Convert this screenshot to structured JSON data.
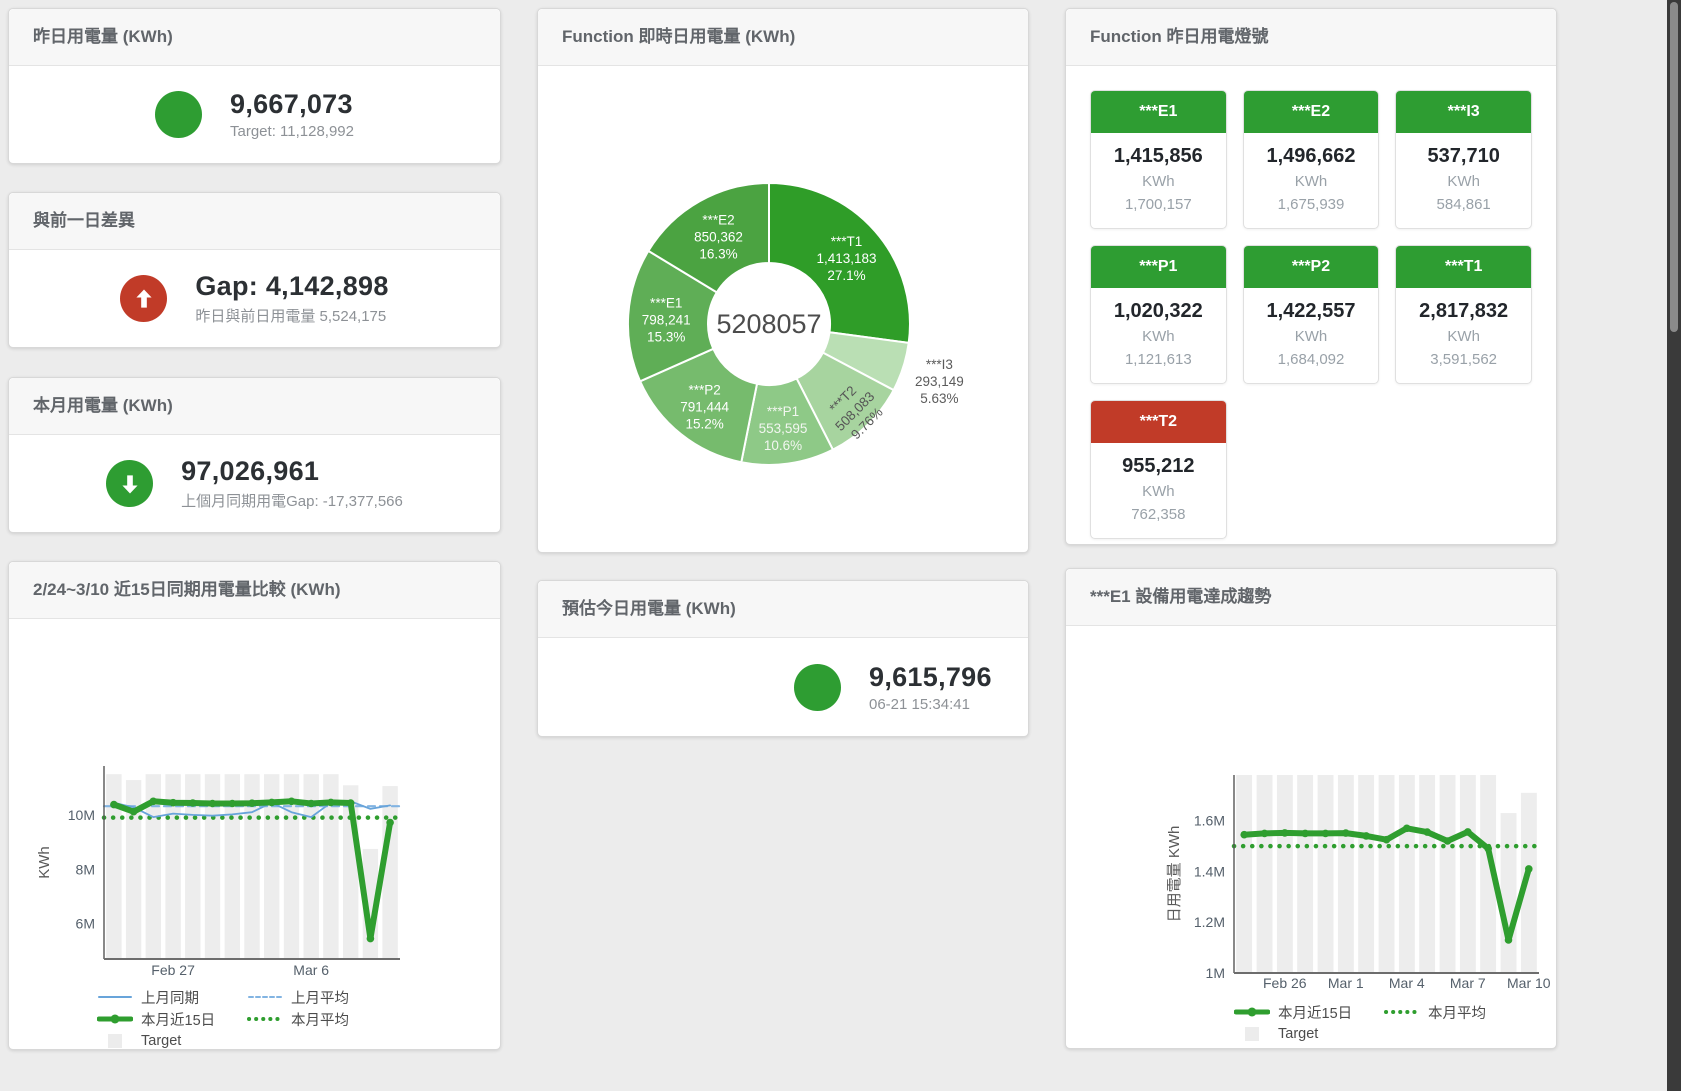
{
  "colors": {
    "green": "#2e9d32",
    "red": "#c13b28",
    "bar_gray": "#ededed",
    "blue_line": "#68a4da",
    "blue_dash": "#82b4e2",
    "green_line": "#2f9e2f"
  },
  "cards": {
    "yesterday": {
      "title": "昨日用電量 (KWh)",
      "value": "9,667,073",
      "subtitle": "Target: 11,128,992"
    },
    "gap": {
      "title": "與前一日差異",
      "value": "Gap: 4,142,898",
      "subtitle": "昨日與前日用電量 5,524,175"
    },
    "month": {
      "title": "本月用電量 (KWh)",
      "value": "97,026,961",
      "subtitle": "上個月同期用電Gap: -17,377,566"
    },
    "realtime": {
      "title": "Function 即時日用電量 (KWh)"
    },
    "lights": {
      "title": "Function 昨日用電燈號"
    },
    "comparison": {
      "title": "2/24~3/10 近15日同期用電量比較 (KWh)"
    },
    "estimate": {
      "title": "預估今日用電量 (KWh)",
      "value": "9,615,796",
      "subtitle": "06-21 15:34:41"
    },
    "trend": {
      "title": "***E1 設備用電達成趨勢"
    }
  },
  "lights_tiles": [
    {
      "key": "e1",
      "label": "***E1",
      "value": "1,415,856",
      "unit": "KWh",
      "target": "1,700,157",
      "status": "green"
    },
    {
      "key": "e2",
      "label": "***E2",
      "value": "1,496,662",
      "unit": "KWh",
      "target": "1,675,939",
      "status": "green"
    },
    {
      "key": "i3",
      "label": "***I3",
      "value": "537,710",
      "unit": "KWh",
      "target": "584,861",
      "status": "green"
    },
    {
      "key": "p1",
      "label": "***P1",
      "value": "1,020,322",
      "unit": "KWh",
      "target": "1,121,613",
      "status": "green"
    },
    {
      "key": "p2",
      "label": "***P2",
      "value": "1,422,557",
      "unit": "KWh",
      "target": "1,684,092",
      "status": "green"
    },
    {
      "key": "t1",
      "label": "***T1",
      "value": "2,817,832",
      "unit": "KWh",
      "target": "3,591,562",
      "status": "green"
    },
    {
      "key": "t2",
      "label": "***T2",
      "value": "955,212",
      "unit": "KWh",
      "target": "762,358",
      "status": "red"
    }
  ],
  "chart_data": [
    {
      "type": "pie",
      "title": "Function 即時日用電量 (KWh)",
      "center_total": "5208057",
      "slices": [
        {
          "key": "t1",
          "label": "***T1",
          "value": 1413183,
          "value_str": "1,413,183",
          "pct_str": "27.1%",
          "color": "#2f9d28",
          "label_mode": "inside",
          "label_color": "#ffffff"
        },
        {
          "key": "i3",
          "label": "***I3",
          "value": 293149,
          "value_str": "293,149",
          "pct_str": "5.63%",
          "color": "#badfb4",
          "label_mode": "outside",
          "label_color": "#5b5b5b"
        },
        {
          "key": "t2",
          "label": "***T2",
          "value": 508083,
          "value_str": "508,083",
          "pct_str": "9.76%",
          "color": "#a7d49f",
          "label_mode": "inside-rotated",
          "label_color": "#565656"
        },
        {
          "key": "p1",
          "label": "***P1",
          "value": 553595,
          "value_str": "553,595",
          "pct_str": "10.6%",
          "color": "#8ec987",
          "label_mode": "inside",
          "label_color": "#f2f6f0"
        },
        {
          "key": "p2",
          "label": "***P2",
          "value": 791444,
          "value_str": "791,444",
          "pct_str": "15.2%",
          "color": "#76bb6d",
          "label_mode": "inside",
          "label_color": "#ffffff"
        },
        {
          "key": "e1",
          "label": "***E1",
          "value": 798241,
          "value_str": "798,241",
          "pct_str": "15.3%",
          "color": "#5fae56",
          "label_mode": "inside",
          "label_color": "#ffffff"
        },
        {
          "key": "e2",
          "label": "***E2",
          "value": 850362,
          "value_str": "850,362",
          "pct_str": "16.3%",
          "color": "#4ba341",
          "label_mode": "inside",
          "label_color": "#ffffff"
        }
      ]
    },
    {
      "type": "line",
      "title": "2/24~3/10 近15日同期用電量比較 (KWh)",
      "ylabel": "KWh",
      "unit_scale": "M",
      "y_domain": [
        4.7,
        11.8
      ],
      "y_ticks": [
        {
          "v": 6,
          "label": "6M"
        },
        {
          "v": 8,
          "label": "8M"
        },
        {
          "v": 10,
          "label": "10M"
        }
      ],
      "x_ticks": [
        {
          "i": 3,
          "label": "Feb 27"
        },
        {
          "i": 10,
          "label": "Mar 6"
        }
      ],
      "bar_color": "#ededed",
      "target_bars": [
        11.5,
        11.28,
        11.5,
        11.5,
        11.5,
        11.5,
        11.5,
        11.5,
        11.5,
        11.5,
        11.5,
        11.5,
        11.09,
        8.75,
        11.06
      ],
      "series": [
        {
          "name": "上月同期",
          "color": "#68a4da",
          "width": 1.8,
          "marker": false,
          "values": [
            10.45,
            10.28,
            9.92,
            10.05,
            10.0,
            9.97,
            10.02,
            10.1,
            10.45,
            10.1,
            9.92,
            10.45,
            10.5,
            10.22,
            10.35
          ]
        },
        {
          "name": "本月近15日",
          "color": "#2f9e2f",
          "width": 6,
          "marker": true,
          "values": [
            10.38,
            10.12,
            10.5,
            10.45,
            10.44,
            10.42,
            10.42,
            10.43,
            10.46,
            10.5,
            10.42,
            10.46,
            10.44,
            5.45,
            9.72
          ]
        }
      ],
      "avg_lines": [
        {
          "name": "上月平均",
          "value": 10.32,
          "color": "#82b4e2",
          "width": 2.2,
          "dash": "7 5"
        },
        {
          "name": "本月平均",
          "value": 9.9,
          "color": "#2f9e2f",
          "width": 4.5,
          "dash": "0.1 9"
        }
      ],
      "legend": [
        {
          "key": "last-month-same-period",
          "label": "上月同期",
          "kind": "line",
          "color": "#68a4da",
          "width": 2,
          "dash": ""
        },
        {
          "key": "last-month-average",
          "label": "上月平均",
          "kind": "line",
          "color": "#82b4e2",
          "width": 2,
          "dash": "4 3"
        },
        {
          "key": "this-month-last-15-days",
          "label": "本月近15日",
          "kind": "line",
          "color": "#2f9e2f",
          "width": 5,
          "dash": "",
          "marker": true
        },
        {
          "key": "this-month-average",
          "label": "本月平均",
          "kind": "line",
          "color": "#2f9e2f",
          "width": 4,
          "dash": "0.1 7"
        },
        {
          "key": "target",
          "label": "Target",
          "kind": "rect",
          "color": "#ececec"
        }
      ]
    },
    {
      "type": "line",
      "title": "***E1 設備用電達成趨勢",
      "ylabel": "日用電量 KWh",
      "unit_scale": "M",
      "y_domain": [
        1.0,
        1.78
      ],
      "y_ticks": [
        {
          "v": 1,
          "label": "1M"
        },
        {
          "v": 1.2,
          "label": "1.2M"
        },
        {
          "v": 1.4,
          "label": "1.4M"
        },
        {
          "v": 1.6,
          "label": "1.6M"
        }
      ],
      "x_ticks": [
        {
          "i": 2,
          "label": "Feb 26"
        },
        {
          "i": 5,
          "label": "Mar 1"
        },
        {
          "i": 8,
          "label": "Mar 4"
        },
        {
          "i": 11,
          "label": "Mar 7"
        },
        {
          "i": 14,
          "label": "Mar 10"
        }
      ],
      "bar_color": "#ededed",
      "target_bars": [
        1.78,
        1.78,
        1.78,
        1.78,
        1.78,
        1.78,
        1.78,
        1.78,
        1.78,
        1.78,
        1.78,
        1.78,
        1.78,
        1.63,
        1.71
      ],
      "series": [
        {
          "name": "本月近15日",
          "color": "#2f9e2f",
          "width": 6,
          "marker": true,
          "values": [
            1.545,
            1.55,
            1.552,
            1.55,
            1.55,
            1.551,
            1.54,
            1.525,
            1.57,
            1.555,
            1.52,
            1.556,
            1.49,
            1.13,
            1.41
          ]
        }
      ],
      "avg_lines": [
        {
          "name": "本月平均",
          "value": 1.5,
          "color": "#2f9e2f",
          "width": 4.5,
          "dash": "0.1 9"
        }
      ],
      "legend": [
        {
          "key": "this-month-last-15-days",
          "label": "本月近15日",
          "kind": "line",
          "color": "#2f9e2f",
          "width": 5,
          "dash": "",
          "marker": true
        },
        {
          "key": "this-month-average",
          "label": "本月平均",
          "kind": "line",
          "color": "#2f9e2f",
          "width": 4,
          "dash": "0.1 7"
        },
        {
          "key": "target",
          "label": "Target",
          "kind": "rect",
          "color": "#ececec"
        }
      ]
    }
  ]
}
